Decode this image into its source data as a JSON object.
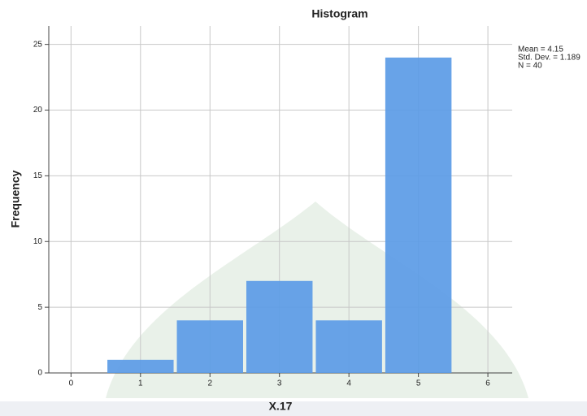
{
  "chart_data": {
    "type": "histogram",
    "title": "Histogram",
    "x_label": "X.17",
    "y_label": "Frequency",
    "bins": [
      0.5,
      1.5,
      2.5,
      3.5,
      4.5,
      5.5
    ],
    "values": [
      1,
      4,
      7,
      4,
      24
    ],
    "color": "#5b9be6",
    "xlim": [
      -0.32,
      6.35
    ],
    "xticks": [
      0,
      1,
      2,
      3,
      4,
      5,
      6
    ],
    "ylim": [
      0,
      26.4
    ],
    "yticks": [
      0,
      5,
      10,
      15,
      20,
      25
    ],
    "grid": true,
    "annotations": [
      "Mean = 4.15",
      "Std. Dev. = 1.189",
      "N = 40"
    ]
  }
}
